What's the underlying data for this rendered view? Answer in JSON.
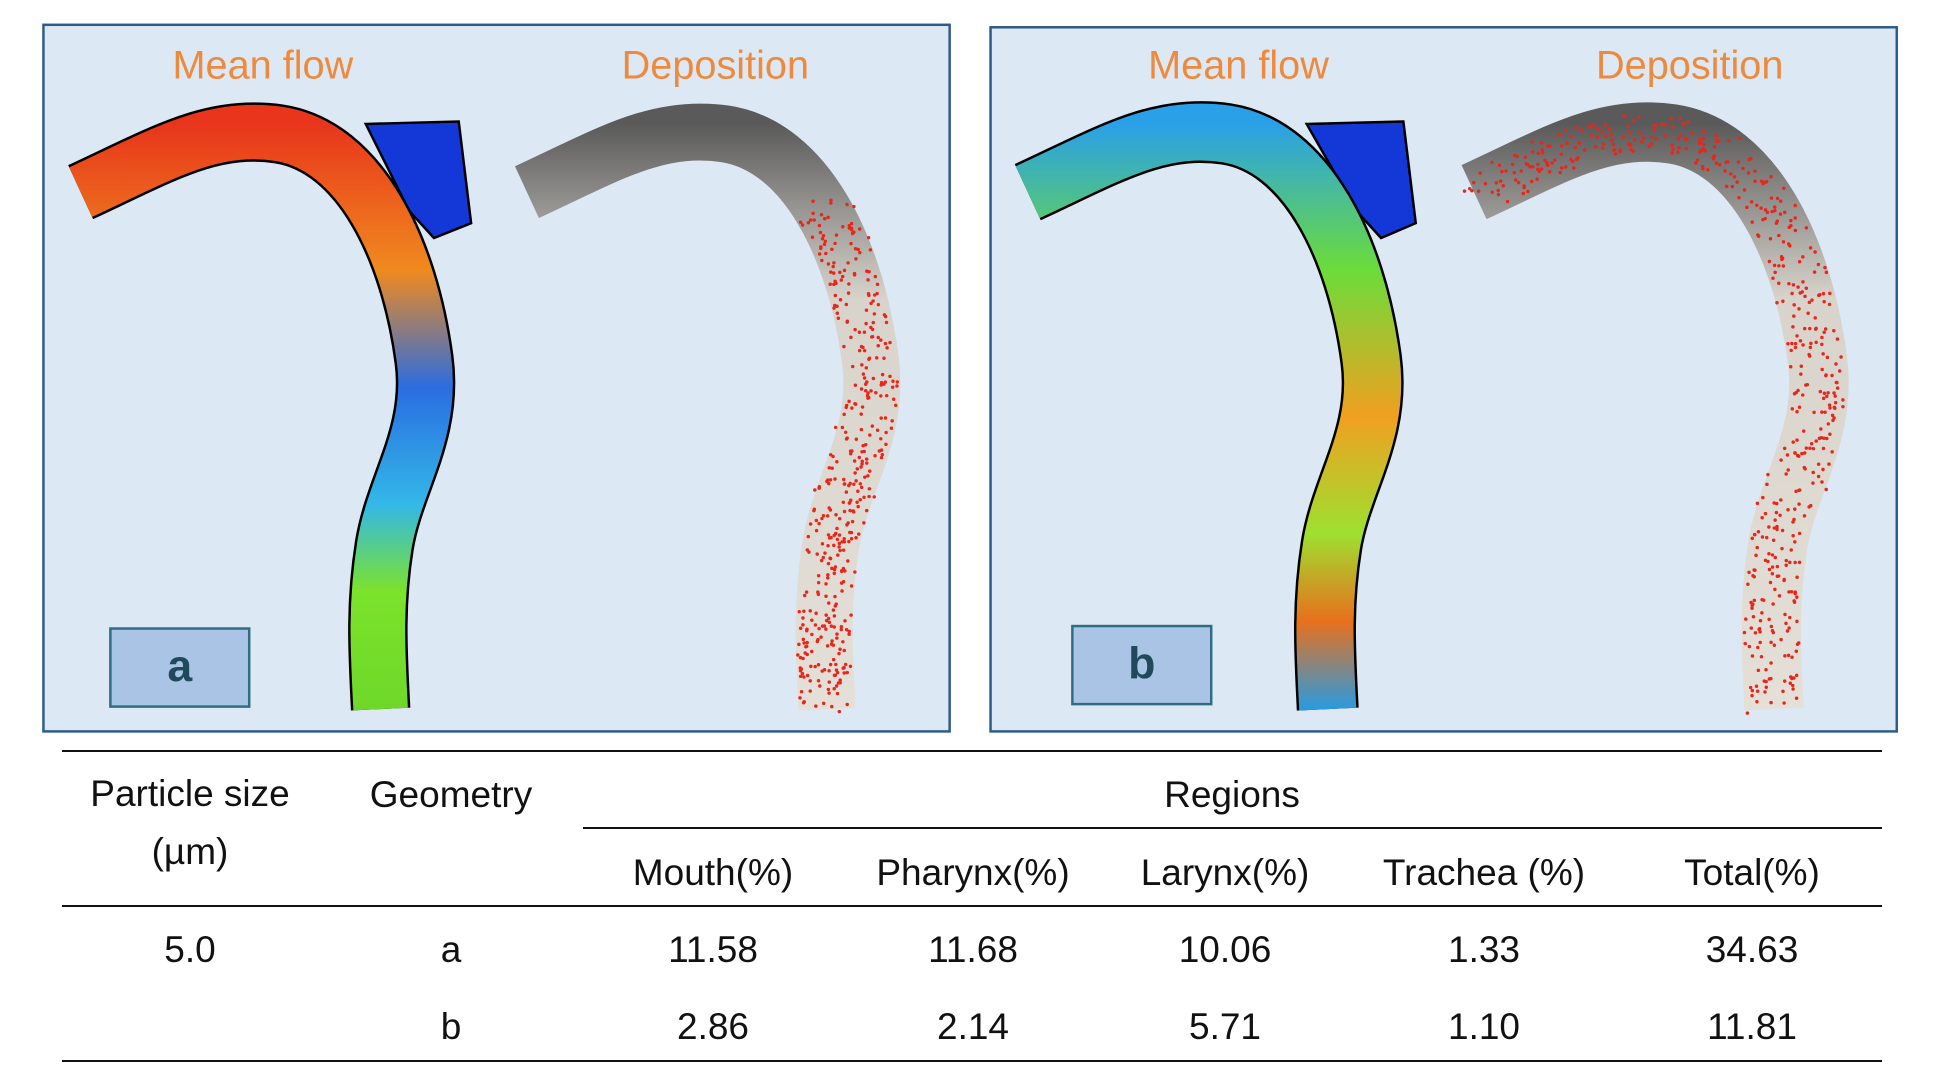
{
  "panels": [
    {
      "label": "a",
      "flow_title": "Mean flow",
      "deposition_title": "Deposition"
    },
    {
      "label": "b",
      "flow_title": "Mean flow",
      "deposition_title": "Deposition"
    }
  ],
  "table": {
    "particle_size_header": "Particle size (µm)",
    "geometry_header": "Geometry",
    "regions_header": "Regions",
    "columns": [
      "Mouth(%)",
      "Pharynx(%)",
      "Larynx(%)",
      "Trachea (%)",
      "Total(%)"
    ],
    "rows": [
      {
        "particle_size": "5.0",
        "geometry": "a",
        "values": [
          "11.58",
          "11.68",
          "10.06",
          "1.33",
          "34.63"
        ]
      },
      {
        "geometry": "b",
        "values": [
          "2.86",
          "2.14",
          "5.71",
          "1.10",
          "11.81"
        ]
      }
    ]
  }
}
